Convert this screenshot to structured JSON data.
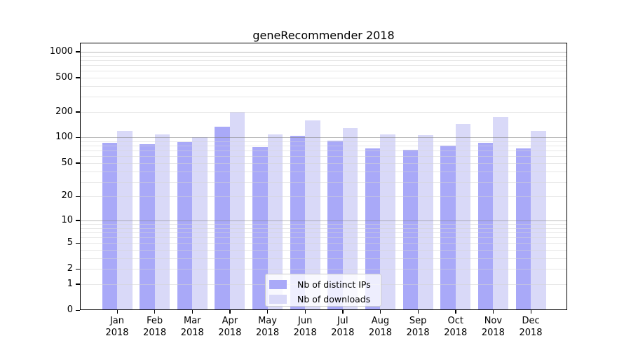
{
  "title": "geneRecommender 2018",
  "legend": {
    "items": [
      {
        "label": "Nb of distinct IPs",
        "color": "#a9a9f8"
      },
      {
        "label": "Nb of downloads",
        "color": "#d9d9f8"
      }
    ]
  },
  "axes": {
    "y_tick_labels": [
      "0",
      "1",
      "2",
      "5",
      "10",
      "20",
      "50",
      "100",
      "200",
      "500",
      "1000"
    ],
    "x_months": [
      "Jan",
      "Feb",
      "Mar",
      "Apr",
      "May",
      "Jun",
      "Jul",
      "Aug",
      "Sep",
      "Oct",
      "Nov",
      "Dec"
    ],
    "x_year": "2018"
  },
  "chart_data": {
    "type": "bar",
    "title": "geneRecommender 2018",
    "categories": [
      "Jan 2018",
      "Feb 2018",
      "Mar 2018",
      "Apr 2018",
      "May 2018",
      "Jun 2018",
      "Jul 2018",
      "Aug 2018",
      "Sep 2018",
      "Oct 2018",
      "Nov 2018",
      "Dec 2018"
    ],
    "series": [
      {
        "name": "Nb of distinct IPs",
        "color": "#a9a9f8",
        "values": [
          86,
          84,
          88,
          134,
          77,
          104,
          92,
          74,
          72,
          80,
          86,
          74
        ]
      },
      {
        "name": "Nb of downloads",
        "color": "#d9d9f8",
        "values": [
          120,
          108,
          100,
          200,
          109,
          160,
          128,
          109,
          107,
          145,
          175,
          120
        ]
      }
    ],
    "xlabel": "",
    "ylabel": "",
    "y_scale": "symlog-like, rendered as log10(1+v)",
    "y_ticks": [
      0,
      1,
      2,
      5,
      10,
      20,
      50,
      100,
      200,
      500,
      1000
    ],
    "y_major_gridlines": [
      10,
      100,
      1000
    ],
    "y_minor_gridlines": [
      3,
      4,
      6,
      7,
      8,
      9,
      30,
      40,
      60,
      70,
      80,
      90,
      300,
      400,
      600,
      700,
      800,
      900
    ],
    "ylim": [
      0,
      1275
    ],
    "grid": true,
    "legend_position": "lower center"
  }
}
